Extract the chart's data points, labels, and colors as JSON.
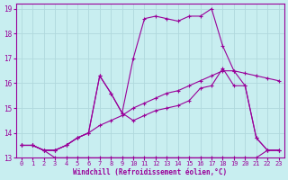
{
  "background_color": "#c8eef0",
  "grid_color": "#b0d8dc",
  "line_color": "#990099",
  "xlabel": "Windchill (Refroidissement éolien,°C)",
  "xlim": [
    -0.5,
    23.5
  ],
  "ylim": [
    13,
    19.2
  ],
  "yticks": [
    13,
    14,
    15,
    16,
    17,
    18,
    19
  ],
  "xticks": [
    0,
    1,
    2,
    3,
    4,
    5,
    6,
    7,
    8,
    9,
    10,
    11,
    12,
    13,
    14,
    15,
    16,
    17,
    18,
    19,
    20,
    21,
    22,
    23
  ],
  "series1_x": [
    0,
    1,
    2,
    3,
    4,
    5,
    6,
    7,
    8,
    9,
    10,
    11,
    12,
    13,
    14,
    15,
    16,
    17,
    18,
    19,
    20,
    21,
    22,
    23
  ],
  "series1_y": [
    13.5,
    13.5,
    13.3,
    13.0,
    13.0,
    13.0,
    13.0,
    13.0,
    13.0,
    13.0,
    13.0,
    13.0,
    13.0,
    13.0,
    13.0,
    13.0,
    13.0,
    13.0,
    13.0,
    13.0,
    13.0,
    13.0,
    13.3,
    13.3
  ],
  "series2_x": [
    0,
    1,
    2,
    3,
    4,
    5,
    6,
    7,
    8,
    9,
    10,
    11,
    12,
    13,
    14,
    15,
    16,
    17,
    18,
    19,
    20,
    21,
    22,
    23
  ],
  "series2_y": [
    13.5,
    13.5,
    13.3,
    13.3,
    13.5,
    13.8,
    14.0,
    14.3,
    14.5,
    14.7,
    15.0,
    15.2,
    15.4,
    15.6,
    15.7,
    15.9,
    16.1,
    16.3,
    16.5,
    16.5,
    16.4,
    16.3,
    16.2,
    16.1
  ],
  "series3_x": [
    0,
    1,
    2,
    3,
    4,
    5,
    6,
    7,
    8,
    9,
    10,
    11,
    12,
    13,
    14,
    15,
    16,
    17,
    18,
    19,
    20,
    21,
    22,
    23
  ],
  "series3_y": [
    13.5,
    13.5,
    13.3,
    13.3,
    13.5,
    13.8,
    14.0,
    16.3,
    15.6,
    14.8,
    14.5,
    14.7,
    14.9,
    15.0,
    15.1,
    15.3,
    15.8,
    15.9,
    16.6,
    15.9,
    15.9,
    13.8,
    13.3,
    13.3
  ],
  "series4_x": [
    0,
    1,
    2,
    3,
    4,
    5,
    6,
    7,
    8,
    9,
    10,
    11,
    12,
    13,
    14,
    15,
    16,
    17,
    18,
    19,
    20,
    21,
    22,
    23
  ],
  "series4_y": [
    13.5,
    13.5,
    13.3,
    13.3,
    13.5,
    13.8,
    14.0,
    16.3,
    15.6,
    14.8,
    17.0,
    18.6,
    18.7,
    18.6,
    18.5,
    18.7,
    18.7,
    19.0,
    17.5,
    16.5,
    15.9,
    13.8,
    13.3,
    13.3
  ],
  "marker": "+"
}
